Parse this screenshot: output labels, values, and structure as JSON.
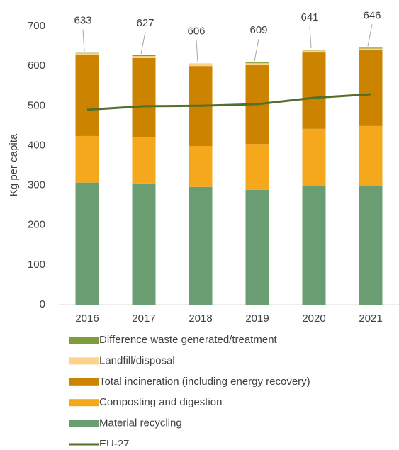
{
  "chart_data": {
    "type": "stacked_bar_line",
    "y_label": "Kg per capita",
    "categories": [
      "2016",
      "2017",
      "2018",
      "2019",
      "2020",
      "2021"
    ],
    "ylim": [
      0,
      700
    ],
    "yticks": [
      0,
      100,
      200,
      300,
      400,
      500,
      600,
      700
    ],
    "series": [
      {
        "name": "Difference waste generated/treatment",
        "color": "#7f9c3a",
        "values": [
          1,
          2,
          2,
          2,
          2,
          2
        ]
      },
      {
        "name": "Landfill/disposal",
        "color": "#fbd38c",
        "values": [
          5,
          5,
          4,
          5,
          5,
          3
        ]
      },
      {
        "name": "Total incineration (including energy recovery)",
        "color": "#cc8400",
        "values": [
          203,
          200,
          201,
          198,
          192,
          192
        ]
      },
      {
        "name": "Composting and digestion",
        "color": "#f5a81c",
        "values": [
          117,
          115,
          103,
          115,
          143,
          150
        ]
      },
      {
        "name": "Material recycling",
        "color": "#6a9e72",
        "values": [
          307,
          305,
          296,
          289,
          299,
          299
        ]
      },
      {
        "name": "EU-27",
        "color": "#566e2c",
        "type": "line",
        "values": [
          490,
          499,
          500,
          504,
          520,
          529
        ]
      }
    ],
    "totals": [
      633,
      627,
      606,
      609,
      641,
      646
    ]
  }
}
